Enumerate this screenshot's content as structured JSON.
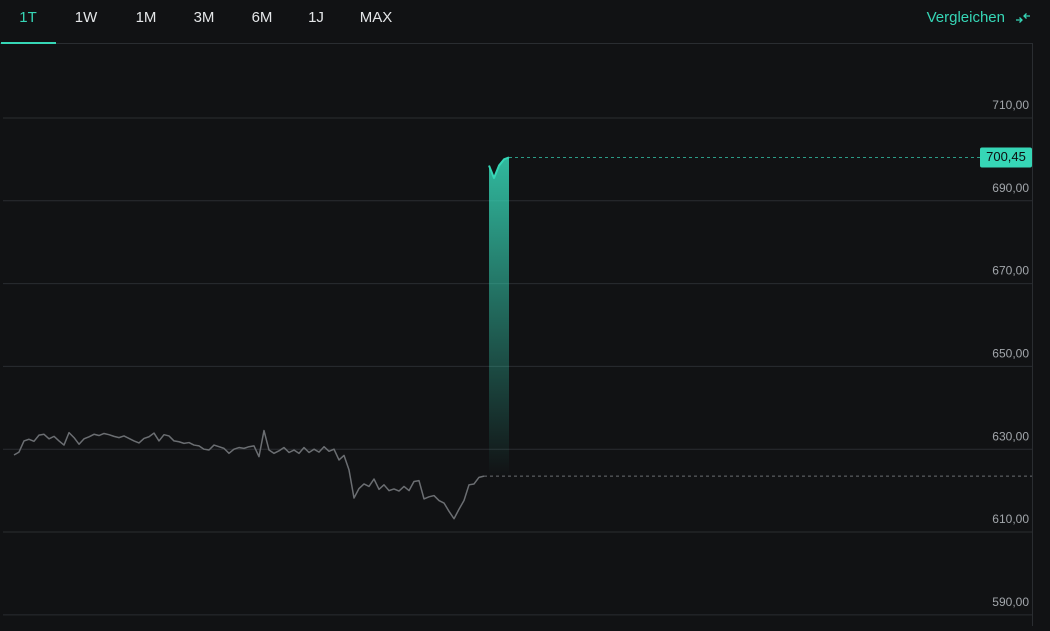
{
  "tabs": [
    "1T",
    "1W",
    "1M",
    "3M",
    "6M",
    "1J",
    "MAX"
  ],
  "active_tab_index": 0,
  "compare_label": "Vergleichen",
  "chart_data": {
    "type": "line",
    "ylim": [
      587.3,
      728.1
    ],
    "yticks": [
      {
        "value": 590,
        "label": "590,00"
      },
      {
        "value": 610,
        "label": "610,00"
      },
      {
        "value": 630,
        "label": "630,00"
      },
      {
        "value": 650,
        "label": "650,00"
      },
      {
        "value": 670,
        "label": "670,00"
      },
      {
        "value": 690,
        "label": "690,00"
      },
      {
        "value": 710,
        "label": "710,00"
      }
    ],
    "grid": true,
    "series": [
      {
        "color": "#6b6e72",
        "values": [
          628.6,
          629.3,
          632.0,
          632.4,
          631.9,
          633.4,
          633.6,
          632.5,
          633.1,
          632.0,
          631.0,
          634.0,
          632.8,
          631.2,
          632.5,
          633.0,
          633.6,
          633.3,
          633.8,
          633.5,
          633.1,
          632.8,
          633.2,
          632.6,
          632.0,
          631.5,
          632.6,
          633.0,
          633.9,
          632.0,
          633.5,
          633.2,
          632.0,
          631.8,
          631.4,
          631.6,
          631.0,
          630.8,
          630.0,
          629.8,
          631.0,
          630.6,
          630.2,
          629.0,
          630.0,
          630.4,
          630.2,
          630.6,
          630.8,
          628.2,
          634.5,
          629.8,
          629.0,
          629.6,
          630.4,
          629.2,
          629.8,
          629.0,
          630.4,
          629.2,
          630.0,
          629.3,
          630.6,
          629.5,
          630.0,
          627.4,
          628.5,
          625.0,
          618.2,
          620.5,
          621.6,
          621.0,
          622.8,
          620.3,
          621.4,
          620.0,
          620.4,
          619.9,
          621.0,
          620.0,
          622.2,
          622.4,
          618.0,
          618.5,
          618.8,
          617.6,
          617.0,
          615.0,
          613.2,
          615.5,
          617.6,
          621.4,
          621.6,
          623.2,
          623.5,
          null,
          null,
          null,
          null,
          null
        ]
      },
      {
        "color": "#36d6b6",
        "values": [
          null,
          null,
          null,
          null,
          null,
          null,
          null,
          null,
          null,
          null,
          null,
          null,
          null,
          null,
          null,
          null,
          null,
          null,
          null,
          null,
          null,
          null,
          null,
          null,
          null,
          null,
          null,
          null,
          null,
          null,
          null,
          null,
          null,
          null,
          null,
          null,
          null,
          null,
          null,
          null,
          null,
          null,
          null,
          null,
          null,
          null,
          null,
          null,
          null,
          null,
          null,
          null,
          null,
          null,
          null,
          null,
          null,
          null,
          null,
          null,
          null,
          null,
          null,
          null,
          null,
          null,
          null,
          null,
          null,
          null,
          null,
          null,
          null,
          null,
          null,
          null,
          null,
          null,
          null,
          null,
          null,
          null,
          null,
          null,
          null,
          null,
          null,
          null,
          null,
          null,
          null,
          null,
          null,
          null,
          null,
          698.5,
          695.5,
          698.5,
          700.0,
          700.45
        ]
      }
    ],
    "reference_line": 623.5,
    "last_value": {
      "value": 700.45,
      "label": "700,45"
    }
  }
}
